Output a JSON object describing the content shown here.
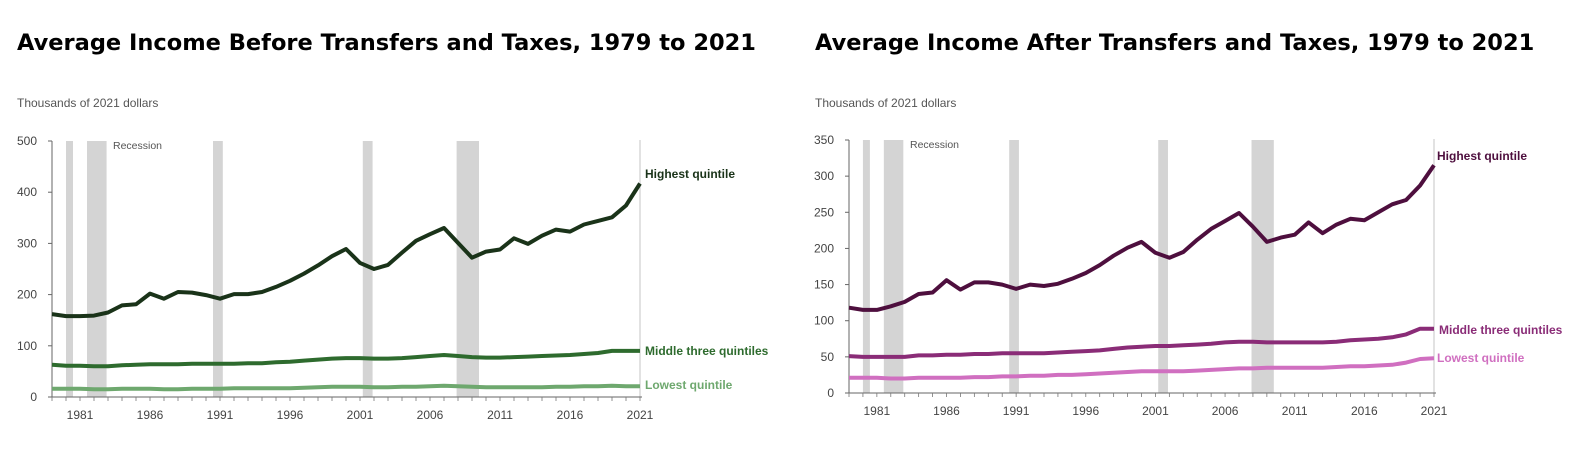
{
  "chart_data": [
    {
      "type": "line",
      "title": "Average Income Before Transfers and Taxes, 1979 to 2021",
      "ylabel": "Thousands of 2021 dollars",
      "xlabel": "",
      "ylim": [
        0,
        500
      ],
      "yticks": [
        0,
        100,
        200,
        300,
        400,
        500
      ],
      "xlim": [
        1979,
        2021
      ],
      "xticks": [
        1981,
        1986,
        1991,
        1996,
        2001,
        2006,
        2011,
        2016,
        2021
      ],
      "recession_label": "Recession",
      "recessions": [
        [
          1980,
          1980.5
        ],
        [
          1981.5,
          1982.9
        ],
        [
          1990.5,
          1991.2
        ],
        [
          2001.2,
          2001.9
        ],
        [
          2007.9,
          2009.5
        ]
      ],
      "x": [
        1979,
        1980,
        1981,
        1982,
        1983,
        1984,
        1985,
        1986,
        1987,
        1988,
        1989,
        1990,
        1991,
        1992,
        1993,
        1994,
        1995,
        1996,
        1997,
        1998,
        1999,
        2000,
        2001,
        2002,
        2003,
        2004,
        2005,
        2006,
        2007,
        2008,
        2009,
        2010,
        2011,
        2012,
        2013,
        2014,
        2015,
        2016,
        2017,
        2018,
        2019,
        2020,
        2021
      ],
      "series": [
        {
          "name": "Highest quintile",
          "color": "#1a3319",
          "values": [
            162,
            158,
            158,
            159,
            165,
            179,
            181,
            202,
            192,
            205,
            204,
            199,
            192,
            201,
            201,
            205,
            215,
            227,
            241,
            257,
            275,
            289,
            262,
            250,
            258,
            282,
            305,
            318,
            330,
            301,
            272,
            284,
            288,
            310,
            299,
            315,
            327,
            323,
            337,
            344,
            351,
            374,
            417
          ]
        },
        {
          "name": "Middle three quintiles",
          "color": "#2e6b2e",
          "values": [
            63,
            61,
            61,
            60,
            60,
            62,
            63,
            64,
            64,
            64,
            65,
            65,
            65,
            65,
            66,
            66,
            68,
            69,
            71,
            73,
            75,
            76,
            76,
            75,
            75,
            76,
            78,
            80,
            82,
            80,
            78,
            77,
            77,
            78,
            79,
            80,
            81,
            82,
            84,
            86,
            90,
            90,
            90
          ]
        },
        {
          "name": "Lowest quintile",
          "color": "#6ea86e",
          "values": [
            16,
            16,
            16,
            15,
            15,
            16,
            16,
            16,
            15,
            15,
            16,
            16,
            16,
            17,
            17,
            17,
            17,
            17,
            18,
            19,
            20,
            20,
            20,
            19,
            19,
            20,
            20,
            21,
            22,
            21,
            20,
            19,
            19,
            19,
            19,
            19,
            20,
            20,
            21,
            21,
            22,
            21,
            21
          ]
        }
      ]
    },
    {
      "type": "line",
      "title": "Average Income After Transfers and Taxes, 1979 to 2021",
      "ylabel": "Thousands of 2021 dollars",
      "xlabel": "",
      "ylim": [
        0,
        350
      ],
      "yticks": [
        0,
        50,
        100,
        150,
        200,
        250,
        300,
        350
      ],
      "xlim": [
        1979,
        2021
      ],
      "xticks": [
        1981,
        1986,
        1991,
        1996,
        2001,
        2006,
        2011,
        2016,
        2021
      ],
      "recession_label": "Recession",
      "recessions": [
        [
          1980,
          1980.5
        ],
        [
          1981.5,
          1982.9
        ],
        [
          1990.5,
          1991.2
        ],
        [
          2001.2,
          2001.9
        ],
        [
          2007.9,
          2009.5
        ]
      ],
      "x": [
        1979,
        1980,
        1981,
        1982,
        1983,
        1984,
        1985,
        1986,
        1987,
        1988,
        1989,
        1990,
        1991,
        1992,
        1993,
        1994,
        1995,
        1996,
        1997,
        1998,
        1999,
        2000,
        2001,
        2002,
        2003,
        2004,
        2005,
        2006,
        2007,
        2008,
        2009,
        2010,
        2011,
        2012,
        2013,
        2014,
        2015,
        2016,
        2017,
        2018,
        2019,
        2020,
        2021
      ],
      "series": [
        {
          "name": "Highest quintile",
          "color": "#4e0f3e",
          "values": [
            118,
            115,
            115,
            120,
            126,
            137,
            139,
            156,
            143,
            153,
            153,
            150,
            144,
            150,
            148,
            151,
            158,
            166,
            177,
            190,
            201,
            209,
            194,
            187,
            195,
            212,
            227,
            238,
            249,
            230,
            209,
            215,
            219,
            236,
            221,
            233,
            241,
            239,
            250,
            261,
            267,
            287,
            315
          ]
        },
        {
          "name": "Middle three quintiles",
          "color": "#8a2c77",
          "values": [
            51,
            50,
            50,
            50,
            50,
            52,
            52,
            53,
            53,
            54,
            54,
            55,
            55,
            55,
            55,
            56,
            57,
            58,
            59,
            61,
            63,
            64,
            65,
            65,
            66,
            67,
            68,
            70,
            71,
            71,
            70,
            70,
            70,
            70,
            70,
            71,
            73,
            74,
            75,
            77,
            81,
            89,
            89
          ]
        },
        {
          "name": "Lowest quintile",
          "color": "#d06fc0",
          "values": [
            21,
            21,
            21,
            20,
            20,
            21,
            21,
            21,
            21,
            22,
            22,
            23,
            23,
            24,
            24,
            25,
            25,
            26,
            27,
            28,
            29,
            30,
            30,
            30,
            30,
            31,
            32,
            33,
            34,
            34,
            35,
            35,
            35,
            35,
            35,
            36,
            37,
            37,
            38,
            39,
            42,
            47,
            48
          ]
        }
      ]
    }
  ]
}
